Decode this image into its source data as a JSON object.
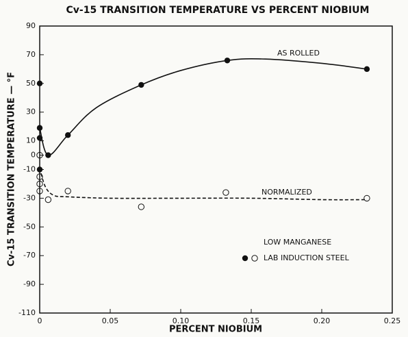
{
  "chart_data": {
    "type": "scatter",
    "title": "Cv-15 TRANSITION TEMPERATURE VS PERCENT NIOBIUM",
    "x_label": "PERCENT NIOBIUM",
    "y_label": "Cv-15 TRANSITION TEMPERATURE — °F",
    "xlim": [
      0,
      0.25
    ],
    "xticks": [
      0,
      0.05,
      {
        "value": 0.1,
        "label": "0.10"
      },
      0.15,
      {
        "value": 0.2,
        "label": "0.20"
      },
      0.25
    ],
    "ylim": [
      -110,
      90
    ],
    "yticks": [
      90,
      70,
      50,
      30,
      10,
      0,
      -10,
      -30,
      -50,
      -70,
      -90,
      -110
    ],
    "legend_text": [
      "LOW MANGANESE",
      "LAB INDUCTION STEEL"
    ],
    "series": [
      {
        "name": "AS ROLLED",
        "color": "#111111",
        "marker": "filled",
        "linestyle": "solid",
        "x": [
          0,
          0,
          0,
          0,
          0.006,
          0.02,
          0.072,
          0.133,
          0.232
        ],
        "values": [
          50,
          19,
          12,
          -10,
          0,
          14,
          49,
          66,
          60
        ],
        "curve": {
          "x": [
            0,
            0.006,
            0.02,
            0.04,
            0.072,
            0.1,
            0.133,
            0.16,
            0.2,
            0.232
          ],
          "values": [
            19,
            0,
            14,
            33,
            49,
            59,
            66,
            67,
            64,
            60
          ]
        }
      },
      {
        "name": "NORMALIZED",
        "color": "#111111",
        "marker": "open",
        "linestyle": "dashed",
        "x": [
          0,
          0,
          0,
          0,
          0.006,
          0.02,
          0.072,
          0.132,
          0.232
        ],
        "values": [
          0,
          -15,
          -20,
          -25,
          -31,
          -25,
          -36,
          -26,
          -30
        ],
        "curve": {
          "x": [
            0,
            0.004,
            0.01,
            0.02,
            0.05,
            0.1,
            0.15,
            0.2,
            0.232
          ],
          "values": [
            -9,
            -22,
            -28,
            -29,
            -30,
            -30,
            -30,
            -31,
            -31
          ]
        }
      }
    ]
  }
}
